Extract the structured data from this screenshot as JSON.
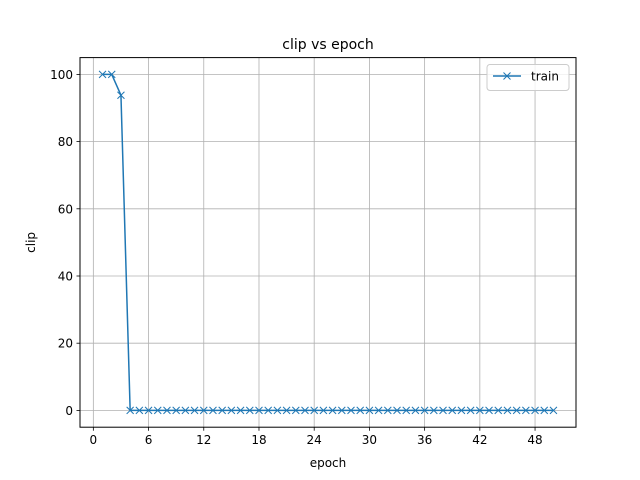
{
  "chart_data": {
    "type": "line",
    "title": "clip vs epoch",
    "xlabel": "epoch",
    "ylabel": "clip",
    "xlim": [
      -1.45,
      52.45
    ],
    "ylim": [
      -5,
      105
    ],
    "xticks": [
      0,
      6,
      12,
      18,
      24,
      30,
      36,
      42,
      48
    ],
    "yticks": [
      0,
      20,
      40,
      60,
      80,
      100
    ],
    "grid": true,
    "legend_position": "top-right",
    "series": [
      {
        "name": "train",
        "color": "#1f77b4",
        "marker": "x",
        "x": [
          1,
          2,
          3,
          4,
          5,
          6,
          7,
          8,
          9,
          10,
          11,
          12,
          13,
          14,
          15,
          16,
          17,
          18,
          19,
          20,
          21,
          22,
          23,
          24,
          25,
          26,
          27,
          28,
          29,
          30,
          31,
          32,
          33,
          34,
          35,
          36,
          37,
          38,
          39,
          40,
          41,
          42,
          43,
          44,
          45,
          46,
          47,
          48,
          49,
          50
        ],
        "y": [
          100,
          100,
          93.8,
          0,
          0,
          0,
          0,
          0,
          0,
          0,
          0,
          0,
          0,
          0,
          0,
          0,
          0,
          0,
          0,
          0,
          0,
          0,
          0,
          0,
          0,
          0,
          0,
          0,
          0,
          0,
          0,
          0,
          0,
          0,
          0,
          0,
          0,
          0,
          0,
          0,
          0,
          0,
          0,
          0,
          0,
          0,
          0,
          0,
          0,
          0
        ]
      }
    ]
  }
}
